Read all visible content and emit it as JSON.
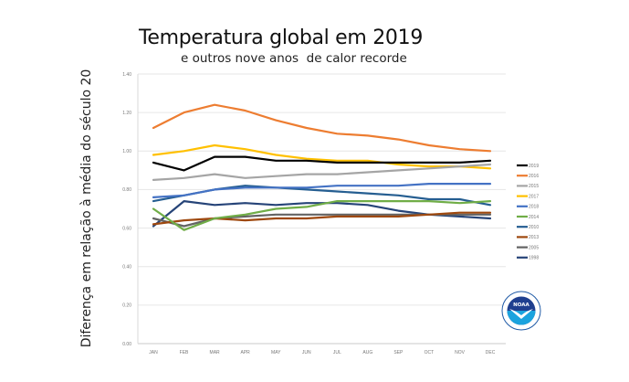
{
  "chart_data": {
    "type": "line",
    "title": "Temperatura global em 2019",
    "subtitle": "e outros nove anos  de calor recorde",
    "xlabel": "",
    "ylabel": "Diferença em relação à média do século 20",
    "ylim": [
      0,
      1.4
    ],
    "grid": true,
    "legend_position": "right",
    "yticks": [
      "0.00",
      "0.20",
      "0.40",
      "0.60",
      "0.80",
      "1.00",
      "1.20",
      "1.40"
    ],
    "ytick_values": [
      0,
      0.2,
      0.4,
      0.6,
      0.8,
      1.0,
      1.2,
      1.4
    ],
    "categories": [
      "JAN",
      "FEB",
      "MAR",
      "APR",
      "MAY",
      "JUN",
      "JUL",
      "AUG",
      "SEP",
      "OCT",
      "NOV",
      "DEC"
    ],
    "series": [
      {
        "name": "2019",
        "color": "#000000",
        "values": [
          0.94,
          0.9,
          0.97,
          0.97,
          0.95,
          0.95,
          0.94,
          0.94,
          0.94,
          0.94,
          0.94,
          0.95
        ]
      },
      {
        "name": "2016",
        "color": "#ED7D31",
        "values": [
          1.12,
          1.2,
          1.24,
          1.21,
          1.16,
          1.12,
          1.09,
          1.08,
          1.06,
          1.03,
          1.01,
          1.0
        ]
      },
      {
        "name": "2015",
        "color": "#A5A5A5",
        "values": [
          0.85,
          0.86,
          0.88,
          0.86,
          0.87,
          0.88,
          0.88,
          0.89,
          0.9,
          0.91,
          0.92,
          0.93
        ]
      },
      {
        "name": "2017",
        "color": "#FFC000",
        "values": [
          0.98,
          1.0,
          1.03,
          1.01,
          0.98,
          0.96,
          0.95,
          0.95,
          0.93,
          0.92,
          0.92,
          0.91
        ]
      },
      {
        "name": "2018",
        "color": "#4472C4",
        "values": [
          0.76,
          0.77,
          0.8,
          0.81,
          0.81,
          0.81,
          0.82,
          0.82,
          0.82,
          0.83,
          0.83,
          0.83
        ]
      },
      {
        "name": "2014",
        "color": "#70AD47",
        "values": [
          0.7,
          0.59,
          0.65,
          0.67,
          0.7,
          0.71,
          0.74,
          0.74,
          0.74,
          0.74,
          0.73,
          0.74
        ]
      },
      {
        "name": "2010",
        "color": "#255E91",
        "values": [
          0.74,
          0.77,
          0.8,
          0.82,
          0.81,
          0.8,
          0.79,
          0.78,
          0.77,
          0.75,
          0.75,
          0.72
        ]
      },
      {
        "name": "2013",
        "color": "#9E480E",
        "values": [
          0.62,
          0.64,
          0.65,
          0.64,
          0.65,
          0.65,
          0.66,
          0.66,
          0.66,
          0.67,
          0.68,
          0.68
        ]
      },
      {
        "name": "2005",
        "color": "#636363",
        "values": [
          0.65,
          0.61,
          0.65,
          0.66,
          0.67,
          0.67,
          0.67,
          0.67,
          0.67,
          0.67,
          0.67,
          0.67
        ]
      },
      {
        "name": "1998",
        "color": "#264478",
        "values": [
          0.61,
          0.74,
          0.72,
          0.73,
          0.72,
          0.73,
          0.73,
          0.72,
          0.69,
          0.67,
          0.66,
          0.65
        ]
      }
    ]
  },
  "logo": {
    "label": "NOAA",
    "icon": "noaa-logo-icon"
  }
}
